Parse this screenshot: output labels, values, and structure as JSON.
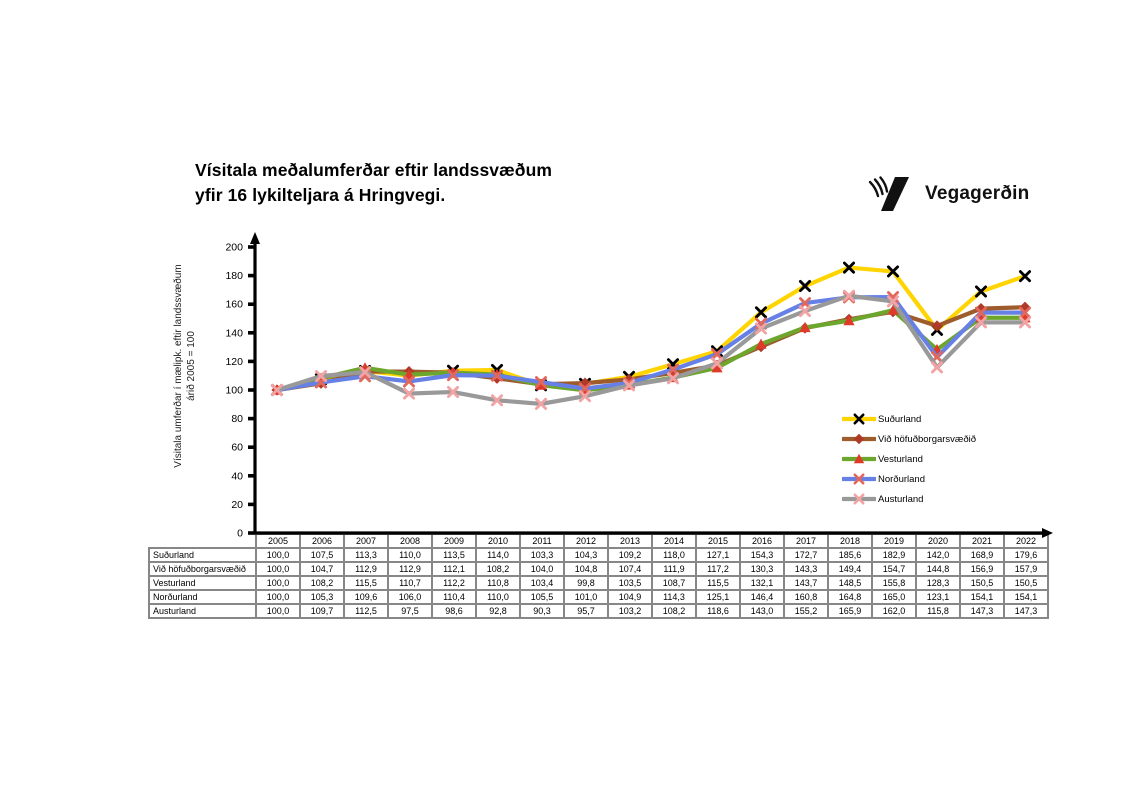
{
  "header": {
    "title_line1": "Vísitala meðalumferðar eftir landssvæðum",
    "title_line2": "yfir 16 lykilteljara á Hringvegi.",
    "logo_text": "Vegagerðin"
  },
  "yaxis": {
    "label_line1": "Vísitala umferðar í mælipk. eftir landssvæðum",
    "label_line2": "árið 2005 = 100",
    "ticks": [
      0,
      20,
      40,
      60,
      80,
      100,
      120,
      140,
      160,
      180,
      200
    ]
  },
  "chart_data": {
    "type": "line",
    "title": "Vísitala meðalumferðar eftir landssvæðum yfir 16 lykilteljara á Hringvegi.",
    "xlabel": "",
    "ylabel": "Vísitala umferðar í mælipk. eftir landssvæðum árið 2005 = 100",
    "ylim": [
      0,
      200
    ],
    "ytick_step": 20,
    "grid": false,
    "legend_position": "right-inside",
    "categories": [
      "2005",
      "2006",
      "2007",
      "2008",
      "2009",
      "2010",
      "2011",
      "2012",
      "2013",
      "2014",
      "2015",
      "2016",
      "2017",
      "2018",
      "2019",
      "2020",
      "2021",
      "2022"
    ],
    "series": [
      {
        "name": "Suðurland",
        "line_color": "#FFD400",
        "marker": "x",
        "marker_color": "#000000",
        "values": [
          100.0,
          107.5,
          113.3,
          110.0,
          113.5,
          114.0,
          103.3,
          104.3,
          109.2,
          118.0,
          127.1,
          154.3,
          172.7,
          185.6,
          182.9,
          142.0,
          168.9,
          179.6
        ]
      },
      {
        "name": "Við höfuðborgarsvæðið",
        "line_color": "#9E5B2B",
        "marker": "diamond",
        "marker_color": "#B03A28",
        "values": [
          100.0,
          104.7,
          112.9,
          112.9,
          112.1,
          108.2,
          104.0,
          104.8,
          107.4,
          111.9,
          117.2,
          130.3,
          143.3,
          149.4,
          154.7,
          144.8,
          156.9,
          157.9
        ]
      },
      {
        "name": "Vesturland",
        "line_color": "#6CA62C",
        "marker": "triangle",
        "marker_color": "#E03A2B",
        "values": [
          100.0,
          108.2,
          115.5,
          110.7,
          112.2,
          110.8,
          103.4,
          99.8,
          103.5,
          108.7,
          115.5,
          132.1,
          143.7,
          148.5,
          155.8,
          128.3,
          150.5,
          150.5
        ]
      },
      {
        "name": "Norðurland",
        "line_color": "#6680E6",
        "marker": "x",
        "marker_color": "#E2685C",
        "values": [
          100.0,
          105.3,
          109.6,
          106.0,
          110.4,
          110.0,
          105.5,
          101.0,
          104.9,
          114.3,
          125.1,
          146.4,
          160.8,
          164.8,
          165.0,
          123.1,
          154.1,
          154.1
        ]
      },
      {
        "name": "Austurland",
        "line_color": "#999999",
        "marker": "x",
        "marker_color": "#F2A3A3",
        "values": [
          100.0,
          109.7,
          112.5,
          97.5,
          98.6,
          92.8,
          90.3,
          95.7,
          103.2,
          108.2,
          118.6,
          143.0,
          155.2,
          165.9,
          162.0,
          115.8,
          147.3,
          147.3
        ]
      }
    ]
  },
  "table": {
    "years": [
      "2005",
      "2006",
      "2007",
      "2008",
      "2009",
      "2010",
      "2011",
      "2012",
      "2013",
      "2014",
      "2015",
      "2016",
      "2017",
      "2018",
      "2019",
      "2020",
      "2021",
      "2022"
    ],
    "rows": [
      {
        "label": "Suðurland",
        "values": [
          "100,0",
          "107,5",
          "113,3",
          "110,0",
          "113,5",
          "114,0",
          "103,3",
          "104,3",
          "109,2",
          "118,0",
          "127,1",
          "154,3",
          "172,7",
          "185,6",
          "182,9",
          "142,0",
          "168,9",
          "179,6"
        ]
      },
      {
        "label": "Við höfuðborgarsvæðið",
        "values": [
          "100,0",
          "104,7",
          "112,9",
          "112,9",
          "112,1",
          "108,2",
          "104,0",
          "104,8",
          "107,4",
          "111,9",
          "117,2",
          "130,3",
          "143,3",
          "149,4",
          "154,7",
          "144,8",
          "156,9",
          "157,9"
        ]
      },
      {
        "label": "Vesturland",
        "values": [
          "100,0",
          "108,2",
          "115,5",
          "110,7",
          "112,2",
          "110,8",
          "103,4",
          "99,8",
          "103,5",
          "108,7",
          "115,5",
          "132,1",
          "143,7",
          "148,5",
          "155,8",
          "128,3",
          "150,5",
          "150,5"
        ]
      },
      {
        "label": "Norðurland",
        "values": [
          "100,0",
          "105,3",
          "109,6",
          "106,0",
          "110,4",
          "110,0",
          "105,5",
          "101,0",
          "104,9",
          "114,3",
          "125,1",
          "146,4",
          "160,8",
          "164,8",
          "165,0",
          "123,1",
          "154,1",
          "154,1"
        ]
      },
      {
        "label": "Austurland",
        "values": [
          "100,0",
          "109,7",
          "112,5",
          "97,5",
          "98,6",
          "92,8",
          "90,3",
          "95,7",
          "103,2",
          "108,2",
          "118,6",
          "143,0",
          "155,2",
          "165,9",
          "162,0",
          "115,8",
          "147,3",
          "147,3"
        ]
      }
    ]
  }
}
